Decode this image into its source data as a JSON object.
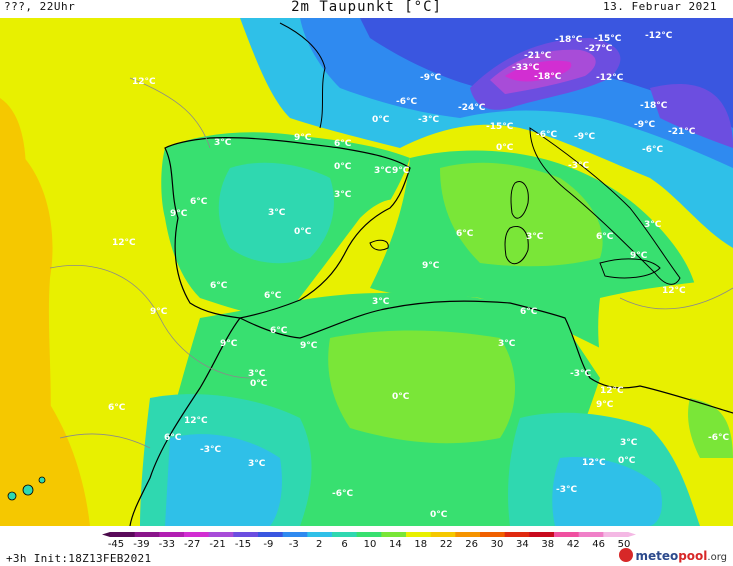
{
  "header": {
    "left": "???, 22Uhr",
    "title": "2m Taupunkt [°C]",
    "date": "13. Februar 2021"
  },
  "footer": {
    "run": "+3h Init:18Z13FEB2021",
    "brand_meteo": "meteo",
    "brand_pool": "pool",
    "brand_org": ".org"
  },
  "legend": {
    "ticks": [
      "-45",
      "-39",
      "-33",
      "-27",
      "-21",
      "-15",
      "-9",
      "-3",
      "2",
      "6",
      "10",
      "14",
      "18",
      "22",
      "26",
      "30",
      "34",
      "38",
      "42",
      "46",
      "50"
    ],
    "colors": [
      "#5a0a5a",
      "#8a158a",
      "#b21fb2",
      "#d22ed2",
      "#a84cd8",
      "#6c4ee0",
      "#3a56e0",
      "#2f8af0",
      "#2fc0e8",
      "#2fd8b0",
      "#38e070",
      "#7ae638",
      "#e8f000",
      "#f5c800",
      "#f59400",
      "#f06000",
      "#e02a10",
      "#c80a1e",
      "#f050a0",
      "#f080c8",
      "#f4b8e4"
    ],
    "colors_note": "bin fill colours"
  },
  "labels": [
    {
      "text": "-18°C"
    },
    {
      "text": "-15°C"
    },
    {
      "text": "-12°C"
    },
    {
      "text": "-27°C"
    },
    {
      "text": "-21°C"
    },
    {
      "text": "-33°C"
    },
    {
      "text": "-18°C"
    },
    {
      "text": "-12°C"
    },
    {
      "text": "-9°C"
    },
    {
      "text": "12°C"
    },
    {
      "text": "-6°C"
    },
    {
      "text": "0°C"
    },
    {
      "text": "-3°C"
    },
    {
      "text": "-24°C"
    },
    {
      "text": "-15°C"
    },
    {
      "text": "-18°C"
    },
    {
      "text": "-9°C"
    },
    {
      "text": "-21°C"
    },
    {
      "text": "-6°C"
    },
    {
      "text": "-9°C"
    },
    {
      "text": "0°C"
    },
    {
      "text": "-6°C"
    },
    {
      "text": "9°C"
    },
    {
      "text": "3°C"
    },
    {
      "text": "6°C"
    },
    {
      "text": "0°C"
    },
    {
      "text": "3°C"
    },
    {
      "text": "9°C"
    },
    {
      "text": "-3°C"
    },
    {
      "text": "3°C"
    },
    {
      "text": "6°C"
    },
    {
      "text": "9°C"
    },
    {
      "text": "3°C"
    },
    {
      "text": "3°C"
    },
    {
      "text": "6°C"
    },
    {
      "text": "0°C"
    },
    {
      "text": "6°C"
    },
    {
      "text": "3°C"
    },
    {
      "text": "12°C"
    },
    {
      "text": "9°C"
    },
    {
      "text": "9°C"
    },
    {
      "text": "6°C"
    },
    {
      "text": "12°C"
    },
    {
      "text": "9°C"
    },
    {
      "text": "6°C"
    },
    {
      "text": "3°C"
    },
    {
      "text": "6°C"
    },
    {
      "text": "6°C"
    },
    {
      "text": "9°C"
    },
    {
      "text": "9°C"
    },
    {
      "text": "3°C"
    },
    {
      "text": "3°C"
    },
    {
      "text": "0°C"
    },
    {
      "text": "-3°C"
    },
    {
      "text": "12°C"
    },
    {
      "text": "6°C"
    },
    {
      "text": "0°C"
    },
    {
      "text": "9°C"
    },
    {
      "text": "12°C"
    },
    {
      "text": "6°C"
    },
    {
      "text": "3°C"
    },
    {
      "text": "-3°C"
    },
    {
      "text": "-6°C"
    },
    {
      "text": "3°C"
    },
    {
      "text": "12°C"
    },
    {
      "text": "0°C"
    },
    {
      "text": "-3°C"
    },
    {
      "text": "-6°C"
    },
    {
      "text": "0°C"
    },
    {
      "text": "3°C"
    },
    {
      "text": "-6°C"
    }
  ]
}
